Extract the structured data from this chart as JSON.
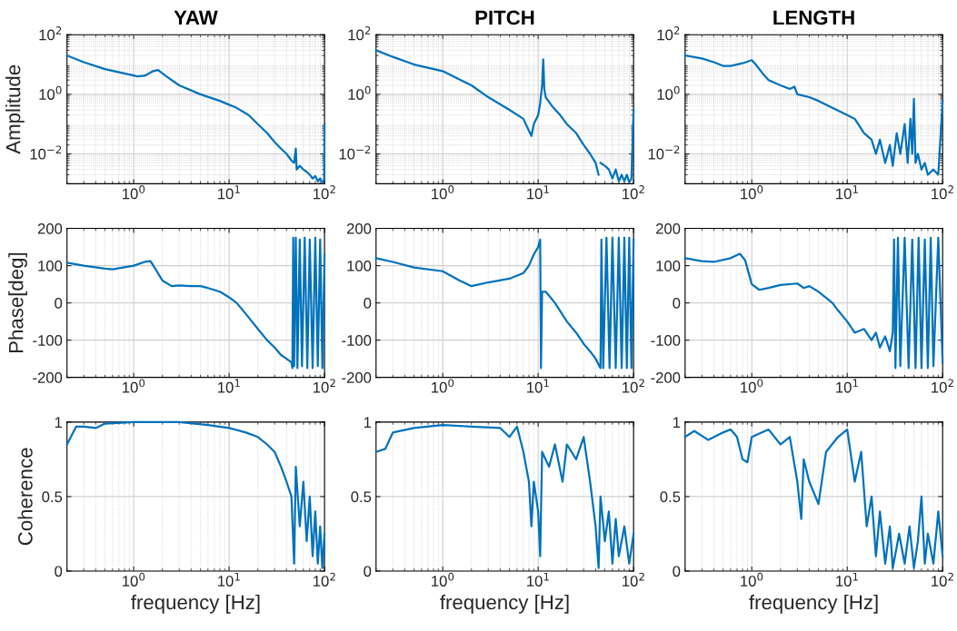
{
  "chart_data": [
    {
      "type": "line",
      "title": "YAW",
      "ylabel": "Amplitude",
      "log": "xy",
      "grid": true,
      "color": "#0072bd",
      "xlim": [
        0.2,
        100
      ],
      "xticks": [
        {
          "value": 1,
          "label": "10$^{0}$"
        },
        {
          "value": 10,
          "label": "10$^{1}$"
        },
        {
          "value": 100,
          "label": "10$^{2}$"
        }
      ],
      "ylim": [
        0.001,
        100
      ],
      "yticks": [
        {
          "value": 0.01,
          "label": "10$^{−2}$"
        },
        {
          "value": 1,
          "label": "10$^{0}$"
        },
        {
          "value": 100,
          "label": "10$^{2}$"
        }
      ],
      "x": [
        0.2,
        0.3,
        0.5,
        0.8,
        1.1,
        1.3,
        1.6,
        1.8,
        2.2,
        3,
        5,
        8,
        12,
        16,
        20,
        25,
        30,
        35,
        40,
        45,
        48,
        50,
        51,
        55,
        60,
        65,
        70,
        75,
        80,
        85,
        90,
        95,
        98,
        99,
        100
      ],
      "values": [
        20,
        12,
        7,
        5,
        4,
        4.2,
        6,
        6.5,
        4,
        2,
        1,
        0.6,
        0.35,
        0.2,
        0.1,
        0.05,
        0.025,
        0.015,
        0.01,
        0.006,
        0.005,
        0.015,
        0.003,
        0.004,
        0.003,
        0.0025,
        0.002,
        0.0015,
        0.0018,
        0.0012,
        0.0015,
        0.0011,
        0.0012,
        0.0015,
        0.1
      ]
    },
    {
      "type": "line",
      "title": "PITCH",
      "log": "xy",
      "grid": true,
      "color": "#0072bd",
      "xlim": [
        0.2,
        100
      ],
      "xticks": [
        {
          "value": 1,
          "label": "10$^{0}$"
        },
        {
          "value": 10,
          "label": "10$^{1}$"
        },
        {
          "value": 100,
          "label": "10$^{2}$"
        }
      ],
      "ylim": [
        0.001,
        100
      ],
      "yticks": [
        {
          "value": 0.01,
          "label": "10$^{−2}$"
        },
        {
          "value": 1,
          "label": "10$^{0}$"
        },
        {
          "value": 100,
          "label": "10$^{2}$"
        }
      ],
      "x": [
        0.2,
        0.3,
        0.5,
        1,
        2,
        3,
        5,
        7,
        8,
        8.5,
        9,
        10,
        10.5,
        11,
        11.3,
        11.6,
        12,
        14,
        17,
        20,
        25,
        30,
        35,
        40,
        43,
        44,
        45,
        50,
        55,
        60,
        65,
        70,
        75,
        80,
        85,
        90,
        95,
        100
      ],
      "values": [
        30,
        18,
        10,
        6,
        2,
        0.8,
        0.3,
        0.15,
        0.06,
        0.04,
        0.1,
        0.2,
        0.5,
        2,
        15,
        1.5,
        0.8,
        0.4,
        0.2,
        0.1,
        0.05,
        0.02,
        0.01,
        0.005,
        0.002,
        null,
        0.005,
        0.004,
        0.003,
        0.0015,
        0.003,
        0.0012,
        0.002,
        0.0012,
        0.002,
        0.0011,
        0.0015,
        0.3
      ]
    },
    {
      "type": "line",
      "title": "LENGTH",
      "log": "xy",
      "grid": true,
      "color": "#0072bd",
      "xlim": [
        0.2,
        100
      ],
      "xticks": [
        {
          "value": 1,
          "label": "10$^{0}$"
        },
        {
          "value": 10,
          "label": "10$^{1}$"
        },
        {
          "value": 100,
          "label": "10$^{2}$"
        }
      ],
      "ylim": [
        0.001,
        100
      ],
      "yticks": [
        {
          "value": 0.01,
          "label": "10$^{−2}$"
        },
        {
          "value": 1,
          "label": "10$^{0}$"
        },
        {
          "value": 100,
          "label": "10$^{2}$"
        }
      ],
      "x": [
        0.2,
        0.3,
        0.4,
        0.5,
        0.6,
        0.8,
        1.0,
        1.1,
        1.3,
        1.5,
        2,
        2.5,
        2.8,
        3,
        4,
        5,
        7,
        10,
        12,
        15,
        18,
        20,
        22,
        25,
        28,
        30,
        33,
        36,
        40,
        43,
        46,
        48,
        50,
        52,
        55,
        60,
        65,
        70,
        80,
        90,
        100
      ],
      "values": [
        20,
        16,
        12,
        9,
        9,
        11,
        14,
        10,
        5,
        3,
        2,
        1.5,
        1.8,
        1,
        0.8,
        0.6,
        0.35,
        0.2,
        0.15,
        0.05,
        0.03,
        0.01,
        0.03,
        0.005,
        0.02,
        0.004,
        0.05,
        0.01,
        0.1,
        0.005,
        0.15,
        0.01,
        0.7,
        0.005,
        0.01,
        0.003,
        0.005,
        0.002,
        0.003,
        0.002,
        0.6
      ]
    },
    {
      "type": "line",
      "ylabel": "Phase[deg]",
      "log": "x",
      "grid": true,
      "color": "#0072bd",
      "xlim": [
        0.2,
        100
      ],
      "xticks": [
        {
          "value": 1,
          "label": "10$^{0}$"
        },
        {
          "value": 10,
          "label": "10$^{1}$"
        },
        {
          "value": 100,
          "label": "10$^{2}$"
        }
      ],
      "ylim": [
        -200,
        200
      ],
      "yticks": [
        -200,
        -100,
        0,
        100,
        200
      ],
      "x": [
        0.2,
        0.3,
        0.5,
        0.6,
        1,
        1.3,
        1.5,
        1.7,
        2,
        2.5,
        3,
        4,
        5,
        6,
        8,
        10,
        12,
        15,
        20,
        25,
        30,
        35,
        40,
        45,
        46,
        47,
        48,
        50,
        52,
        55,
        58,
        62,
        66,
        70,
        75,
        80,
        85,
        90,
        95,
        100
      ],
      "values": [
        108,
        100,
        92,
        90,
        100,
        110,
        112,
        90,
        60,
        45,
        47,
        45,
        45,
        40,
        30,
        15,
        0,
        -30,
        -70,
        -100,
        -120,
        -140,
        -150,
        -160,
        -175,
        175,
        -170,
        175,
        -175,
        170,
        -170,
        175,
        -175,
        170,
        -175,
        175,
        -170,
        170,
        -175,
        130
      ]
    },
    {
      "type": "line",
      "log": "x",
      "grid": true,
      "color": "#0072bd",
      "xlim": [
        0.2,
        100
      ],
      "xticks": [
        {
          "value": 1,
          "label": "10$^{0}$"
        },
        {
          "value": 10,
          "label": "10$^{1}$"
        },
        {
          "value": 100,
          "label": "10$^{2}$"
        }
      ],
      "ylim": [
        -200,
        200
      ],
      "yticks": [
        -200,
        -100,
        0,
        100,
        200
      ],
      "x": [
        0.2,
        0.3,
        0.5,
        1,
        1.5,
        2,
        3,
        5,
        7,
        8,
        9,
        10,
        10.5,
        10.7,
        11,
        12,
        15,
        20,
        25,
        30,
        35,
        40,
        45,
        46,
        48,
        52,
        56,
        60,
        65,
        70,
        75,
        80,
        85,
        90,
        95,
        100
      ],
      "values": [
        120,
        110,
        95,
        85,
        60,
        45,
        55,
        65,
        80,
        100,
        130,
        150,
        170,
        -175,
        30,
        30,
        0,
        -50,
        -80,
        -110,
        -130,
        -150,
        -175,
        170,
        -175,
        175,
        -175,
        175,
        -175,
        175,
        -175,
        175,
        -175,
        175,
        -175,
        170
      ]
    },
    {
      "type": "line",
      "log": "x",
      "grid": true,
      "color": "#0072bd",
      "xlim": [
        0.2,
        100
      ],
      "xticks": [
        {
          "value": 1,
          "label": "10$^{0}$"
        },
        {
          "value": 10,
          "label": "10$^{1}$"
        },
        {
          "value": 100,
          "label": "10$^{2}$"
        }
      ],
      "ylim": [
        -200,
        200
      ],
      "yticks": [
        -200,
        -100,
        0,
        100,
        200
      ],
      "x": [
        0.2,
        0.3,
        0.4,
        0.6,
        0.75,
        0.85,
        1,
        1.2,
        1.5,
        2,
        3,
        3.5,
        4,
        5,
        7,
        8,
        10,
        12,
        15,
        18,
        20,
        22,
        25,
        28,
        30,
        31,
        32,
        34,
        36,
        40,
        44,
        48,
        52,
        56,
        60,
        65,
        70,
        75,
        80,
        90,
        100
      ],
      "values": [
        120,
        112,
        110,
        120,
        132,
        115,
        50,
        35,
        40,
        48,
        52,
        40,
        45,
        30,
        0,
        -20,
        -50,
        -80,
        -70,
        -100,
        -80,
        -120,
        -90,
        -130,
        -80,
        170,
        -175,
        175,
        -170,
        175,
        -175,
        170,
        -175,
        175,
        -175,
        170,
        -175,
        175,
        -170,
        175,
        -160
      ]
    },
    {
      "type": "line",
      "ylabel": "Coherence",
      "xlabel": "frequency [Hz]",
      "log": "x",
      "grid": true,
      "color": "#0072bd",
      "xlim": [
        0.2,
        100
      ],
      "xticks": [
        {
          "value": 1,
          "label": "10$^{0}$"
        },
        {
          "value": 10,
          "label": "10$^{1}$"
        },
        {
          "value": 100,
          "label": "10$^{2}$"
        }
      ],
      "ylim": [
        0,
        1
      ],
      "yticks": [
        0,
        0.5,
        1
      ],
      "x": [
        0.2,
        0.25,
        0.3,
        0.4,
        0.5,
        1,
        3,
        6,
        10,
        15,
        20,
        25,
        30,
        35,
        40,
        45,
        48,
        50,
        55,
        60,
        65,
        70,
        75,
        80,
        85,
        90,
        95,
        100
      ],
      "values": [
        0.85,
        0.97,
        0.97,
        0.96,
        0.99,
        1,
        1,
        0.98,
        0.96,
        0.93,
        0.9,
        0.85,
        0.8,
        0.7,
        0.6,
        0.5,
        0.05,
        0.7,
        0.3,
        0.6,
        0.2,
        0.5,
        0.1,
        0.4,
        0.05,
        0.3,
        0.02,
        0.25
      ]
    },
    {
      "type": "line",
      "xlabel": "frequency [Hz]",
      "log": "x",
      "grid": true,
      "color": "#0072bd",
      "xlim": [
        0.2,
        100
      ],
      "xticks": [
        {
          "value": 1,
          "label": "10$^{0}$"
        },
        {
          "value": 10,
          "label": "10$^{1}$"
        },
        {
          "value": 100,
          "label": "10$^{2}$"
        }
      ],
      "ylim": [
        0,
        1
      ],
      "yticks": [
        0,
        0.5,
        1
      ],
      "x": [
        0.2,
        0.25,
        0.3,
        0.5,
        1,
        2,
        4,
        5,
        6,
        7,
        8,
        8.5,
        9,
        10,
        10.5,
        11,
        13,
        15,
        18,
        20,
        25,
        30,
        35,
        40,
        43,
        45,
        50,
        55,
        60,
        65,
        70,
        80,
        90,
        100
      ],
      "values": [
        0.8,
        0.82,
        0.93,
        0.96,
        0.98,
        0.97,
        0.96,
        0.9,
        0.97,
        0.8,
        0.6,
        0.3,
        0.6,
        0.4,
        0.1,
        0.8,
        0.7,
        0.85,
        0.6,
        0.85,
        0.75,
        0.9,
        0.6,
        0.3,
        0.02,
        0.5,
        0.2,
        0.4,
        0.05,
        0.35,
        0.1,
        0.3,
        0.05,
        0.25
      ]
    },
    {
      "type": "line",
      "xlabel": "frequency [Hz]",
      "log": "x",
      "grid": true,
      "color": "#0072bd",
      "xlim": [
        0.2,
        100
      ],
      "xticks": [
        {
          "value": 1,
          "label": "10$^{0}$"
        },
        {
          "value": 10,
          "label": "10$^{1}$"
        },
        {
          "value": 100,
          "label": "10$^{2}$"
        }
      ],
      "ylim": [
        0,
        1
      ],
      "yticks": [
        0,
        0.5,
        1
      ],
      "x": [
        0.2,
        0.25,
        0.35,
        0.5,
        0.6,
        0.7,
        0.8,
        0.9,
        1,
        1.5,
        2,
        2.5,
        3,
        3.3,
        3.5,
        4,
        5,
        6,
        8,
        10,
        12,
        14,
        16,
        18,
        20,
        22,
        25,
        28,
        30,
        35,
        40,
        45,
        50,
        55,
        60,
        65,
        70,
        80,
        90,
        100
      ],
      "values": [
        0.9,
        0.94,
        0.88,
        0.93,
        0.95,
        0.9,
        0.75,
        0.73,
        0.9,
        0.95,
        0.85,
        0.9,
        0.6,
        0.35,
        0.75,
        0.6,
        0.45,
        0.8,
        0.9,
        0.95,
        0.6,
        0.8,
        0.3,
        0.5,
        0.1,
        0.4,
        0.05,
        0.3,
        0.02,
        0.25,
        0.05,
        0.3,
        0.02,
        0.2,
        0.5,
        0.05,
        0.25,
        0.05,
        0.4,
        0.1
      ]
    }
  ]
}
